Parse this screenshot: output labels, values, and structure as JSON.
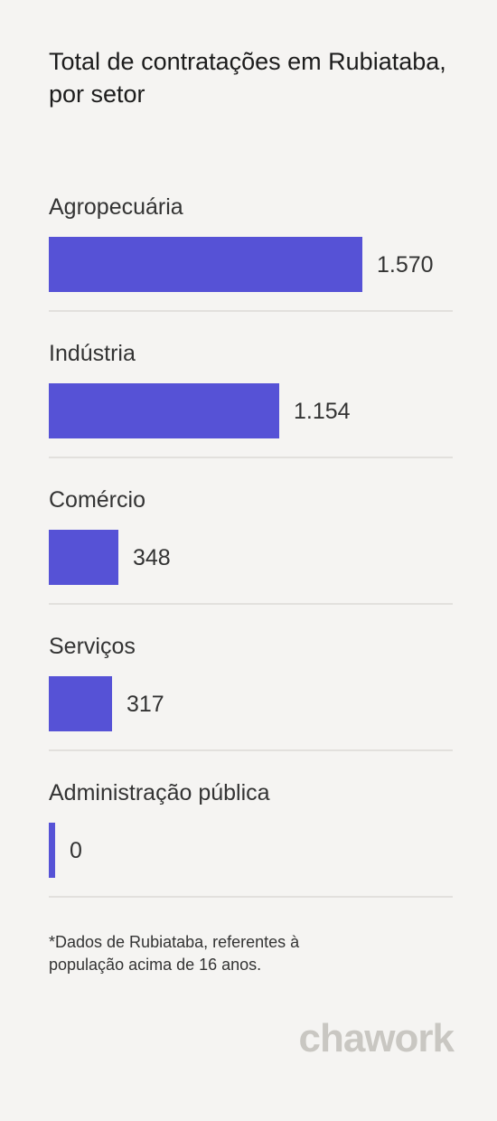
{
  "chart_data": {
    "type": "bar",
    "orientation": "horizontal",
    "title": "Total de contratações em Rubiataba, por setor",
    "categories": [
      "Agropecuária",
      "Indústria",
      "Comércio",
      "Serviços",
      "Administração pública"
    ],
    "values": [
      1570,
      1154,
      348,
      317,
      0
    ],
    "value_labels": [
      "1.570",
      "1.154",
      "348",
      "317",
      "0"
    ],
    "bar_color": "#5652d6",
    "grid": false,
    "legend": "none"
  },
  "footnote": "*Dados de Rubiataba, referentes à população acima de 16 anos.",
  "brand": "chawork"
}
